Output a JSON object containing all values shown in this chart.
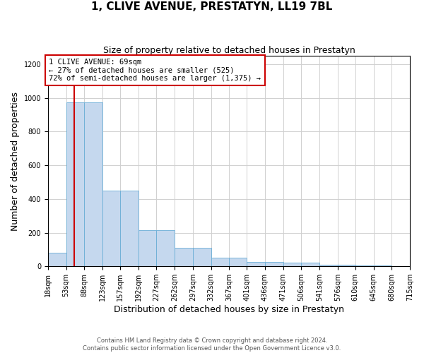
{
  "title": "1, CLIVE AVENUE, PRESTATYN, LL19 7BL",
  "subtitle": "Size of property relative to detached houses in Prestatyn",
  "xlabel": "Distribution of detached houses by size in Prestatyn",
  "ylabel": "Number of detached properties",
  "bin_edges": [
    18,
    53,
    88,
    123,
    157,
    192,
    227,
    262,
    297,
    332,
    367,
    401,
    436,
    471,
    506,
    541,
    576,
    610,
    645,
    680,
    715
  ],
  "bar_heights": [
    80,
    975,
    975,
    450,
    450,
    215,
    215,
    110,
    110,
    50,
    50,
    25,
    25,
    20,
    20,
    10,
    10,
    5,
    5,
    3
  ],
  "bar_color": "#c5d8ee",
  "bar_edge_color": "#6aaed6",
  "property_size": 69,
  "property_line_color": "#cc0000",
  "annotation_text": "1 CLIVE AVENUE: 69sqm\n← 27% of detached houses are smaller (525)\n72% of semi-detached houses are larger (1,375) →",
  "annotation_box_color": "#ffffff",
  "annotation_box_edge": "#cc0000",
  "ylim": [
    0,
    1250
  ],
  "yticks": [
    0,
    200,
    400,
    600,
    800,
    1000,
    1200
  ],
  "tick_labels": [
    "18sqm",
    "53sqm",
    "88sqm",
    "123sqm",
    "157sqm",
    "192sqm",
    "227sqm",
    "262sqm",
    "297sqm",
    "332sqm",
    "367sqm",
    "401sqm",
    "436sqm",
    "471sqm",
    "506sqm",
    "541sqm",
    "576sqm",
    "610sqm",
    "645sqm",
    "680sqm",
    "715sqm"
  ],
  "footer": "Contains HM Land Registry data © Crown copyright and database right 2024.\nContains public sector information licensed under the Open Government Licence v3.0.",
  "background_color": "#ffffff",
  "grid_color": "#d0d0d0",
  "title_fontsize": 11,
  "subtitle_fontsize": 9,
  "ylabel_fontsize": 9,
  "xlabel_fontsize": 9,
  "tick_fontsize": 7,
  "annotation_fontsize": 7.5
}
